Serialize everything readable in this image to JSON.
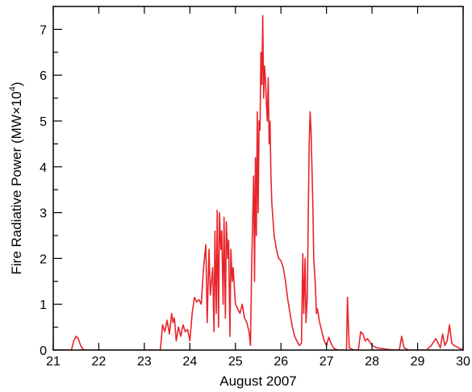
{
  "chart_data": {
    "type": "line",
    "title": "",
    "xlabel": "August 2007",
    "ylabel_main": "Fire Radiative Power (MW×10",
    "ylabel_sup": "4",
    "ylabel_close": ")",
    "xlim": [
      21,
      30
    ],
    "ylim": [
      0,
      7.5
    ],
    "xticks": [
      21,
      22,
      23,
      24,
      25,
      26,
      27,
      28,
      29,
      30
    ],
    "xtick_labels": [
      "21",
      "22",
      "23",
      "24",
      "25",
      "26",
      "27",
      "28",
      "29",
      "30"
    ],
    "yticks": [
      0,
      1,
      2,
      3,
      4,
      5,
      6,
      7
    ],
    "ytick_labels": [
      "0",
      "1",
      "2",
      "3",
      "4",
      "5",
      "6",
      "7"
    ],
    "grid": false,
    "line_color": "#e8242b",
    "series": [
      {
        "x": [
          21.0,
          21.4,
          21.45,
          21.5,
          21.55,
          21.6,
          21.65,
          21.7,
          22.0,
          22.4,
          23.0,
          23.35,
          23.38,
          23.4,
          23.45,
          23.5,
          23.55,
          23.6,
          23.63,
          23.66,
          23.7,
          23.75,
          23.8,
          23.85,
          23.9,
          23.95,
          24.0,
          24.05,
          24.1,
          24.15,
          24.2,
          24.25,
          24.3,
          24.35,
          24.38,
          24.42,
          24.45,
          24.5,
          24.53,
          24.55,
          24.58,
          24.6,
          24.63,
          24.65,
          24.68,
          24.7,
          24.73,
          24.75,
          24.78,
          24.8,
          24.83,
          24.85,
          24.88,
          24.9,
          24.93,
          24.95,
          25.0,
          25.05,
          25.1,
          25.15,
          25.2,
          25.25,
          25.3,
          25.33,
          25.36,
          25.4,
          25.42,
          25.44,
          25.46,
          25.48,
          25.5,
          25.52,
          25.54,
          25.56,
          25.58,
          25.6,
          25.62,
          25.64,
          25.66,
          25.68,
          25.7,
          25.72,
          25.74,
          25.76,
          25.78,
          25.8,
          25.85,
          25.9,
          25.95,
          26.0,
          26.05,
          26.1,
          26.15,
          26.2,
          26.25,
          26.3,
          26.35,
          26.4,
          26.45,
          26.48,
          26.5,
          26.53,
          26.55,
          26.58,
          26.6,
          26.62,
          26.64,
          26.66,
          26.68,
          26.7,
          26.72,
          26.75,
          26.78,
          26.8,
          26.85,
          26.9,
          26.95,
          27.0,
          27.05,
          27.1,
          27.15,
          27.2,
          27.25,
          27.3,
          27.4,
          27.44,
          27.46,
          27.5,
          27.6,
          27.7,
          27.75,
          27.8,
          27.85,
          27.9,
          28.0,
          28.1,
          28.3,
          28.5,
          28.6,
          28.65,
          28.7,
          28.8,
          29.0,
          29.2,
          29.3,
          29.4,
          29.5,
          29.55,
          29.6,
          29.65,
          29.7,
          29.75,
          29.8,
          29.9,
          30.0
        ],
        "y": [
          0,
          0,
          0.2,
          0.3,
          0.25,
          0.1,
          0.02,
          0,
          0,
          0,
          0,
          0,
          0.3,
          0.55,
          0.4,
          0.65,
          0.35,
          0.8,
          0.6,
          0.7,
          0.2,
          0.5,
          0.3,
          0.55,
          0.4,
          0.45,
          0.2,
          0.8,
          1.15,
          1.05,
          1.1,
          1.0,
          1.8,
          2.3,
          0.6,
          2.2,
          1.2,
          1.8,
          0.4,
          2.6,
          0.8,
          3.05,
          0.5,
          3.0,
          2.2,
          2.6,
          1.0,
          2.9,
          0.7,
          2.8,
          2.0,
          2.4,
          0.3,
          2.2,
          1.5,
          1.8,
          1.0,
          0.9,
          0.8,
          1.0,
          0.7,
          0.6,
          0.4,
          0.1,
          2.0,
          3.8,
          1.5,
          4.2,
          2.5,
          5.2,
          3.0,
          5.0,
          4.8,
          6.5,
          5.8,
          7.3,
          5.5,
          6.2,
          5.9,
          5.4,
          5.0,
          5.95,
          4.5,
          5.0,
          3.8,
          3.2,
          2.5,
          2.2,
          2.0,
          1.95,
          1.8,
          1.5,
          1.1,
          0.8,
          0.5,
          0.3,
          0.2,
          0.1,
          0.15,
          2.1,
          0.8,
          2.0,
          0.6,
          1.2,
          3.0,
          4.5,
          5.2,
          4.8,
          4.0,
          3.2,
          2.0,
          1.5,
          0.8,
          0.9,
          0.6,
          0.4,
          0.2,
          0.1,
          0.28,
          0.15,
          0.05,
          0.02,
          0,
          0,
          0,
          0,
          1.15,
          0.05,
          0,
          0,
          0.4,
          0.35,
          0.2,
          0.25,
          0.1,
          0.05,
          0.02,
          0,
          0,
          0.3,
          0.05,
          0,
          0,
          0,
          0.1,
          0.25,
          0.05,
          0.35,
          0.1,
          0.2,
          0.55,
          0.15,
          0.1,
          0.05,
          0
        ]
      }
    ]
  }
}
